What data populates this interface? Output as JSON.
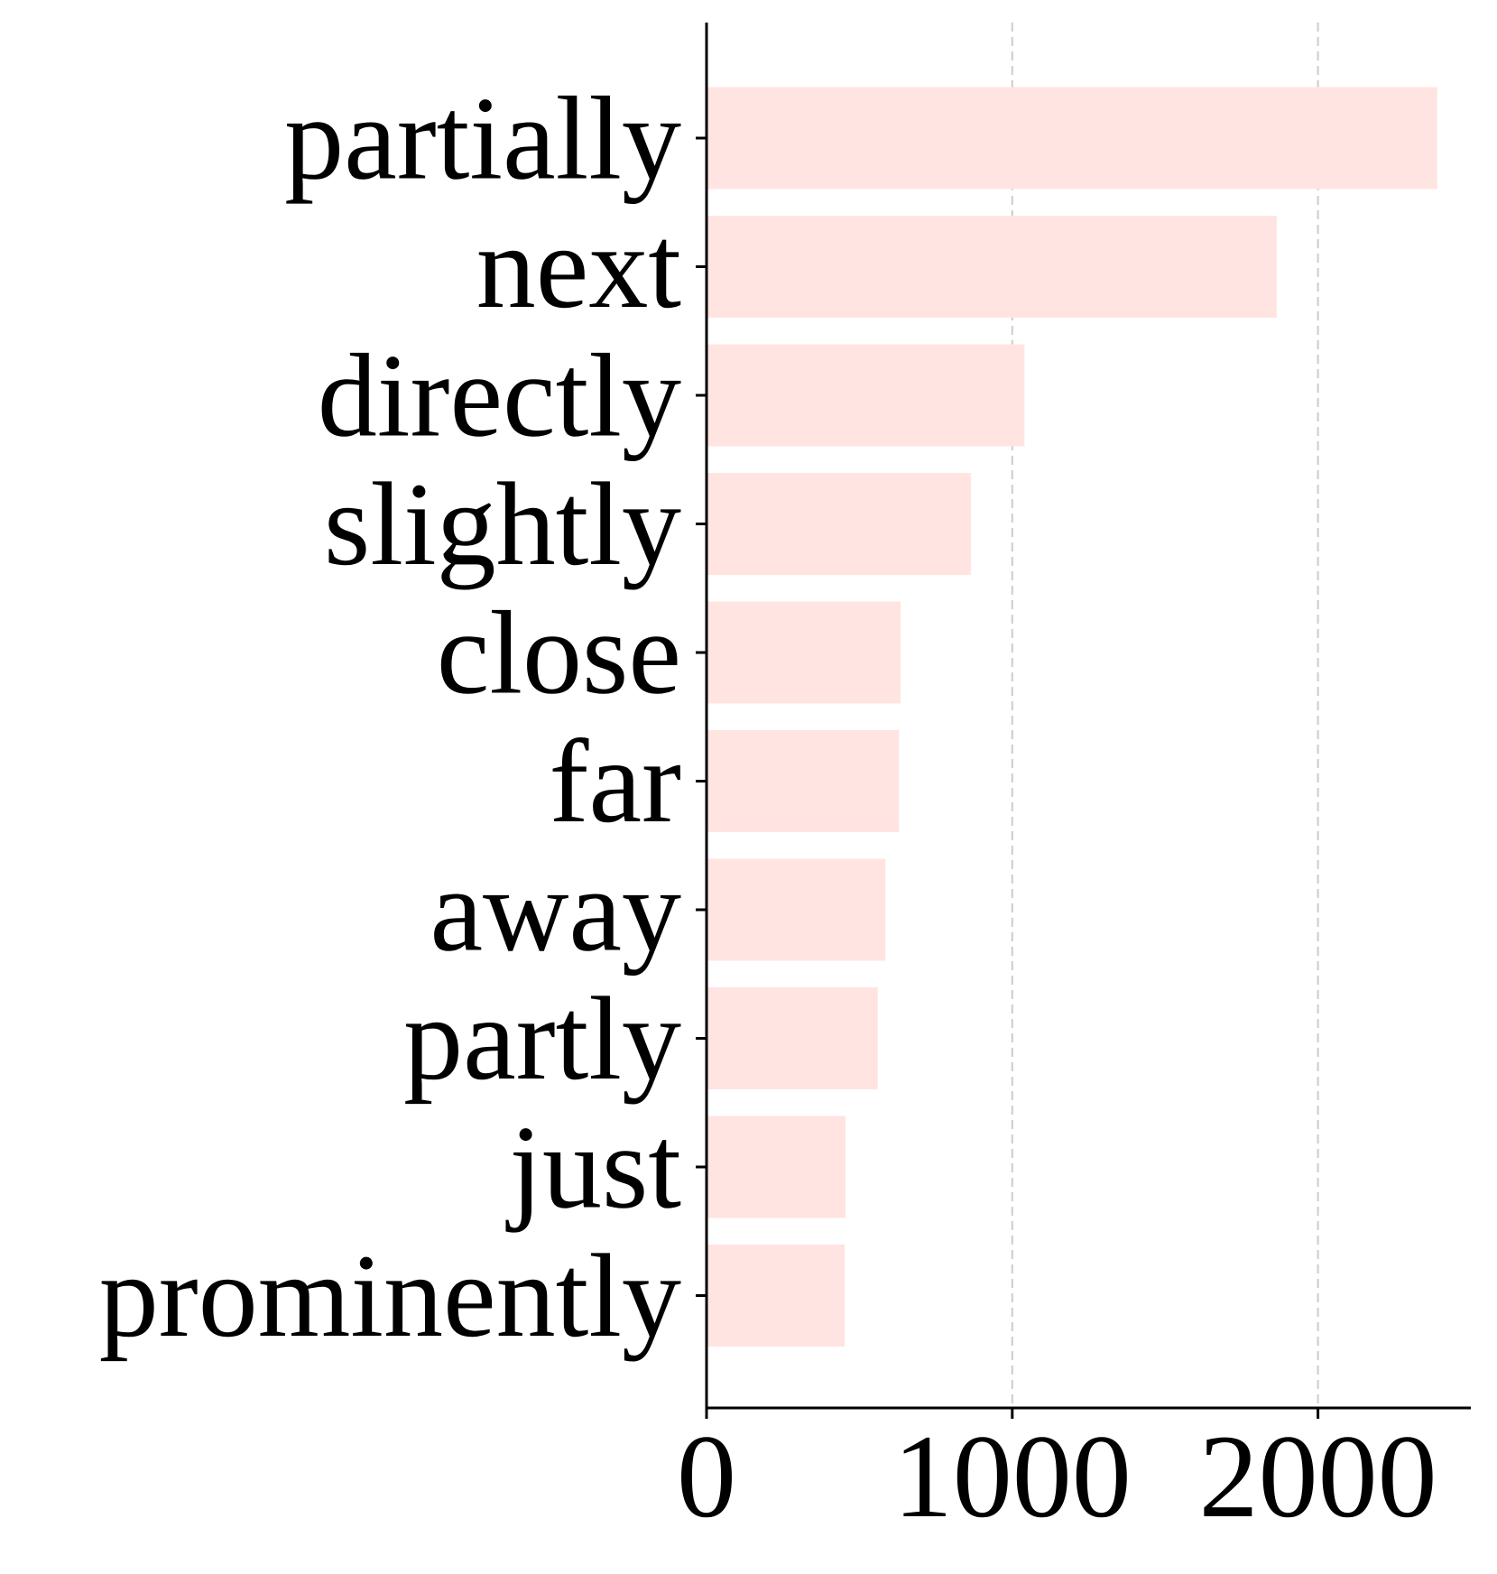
{
  "chart_data": {
    "type": "bar",
    "orientation": "horizontal",
    "categories": [
      "partially",
      "next",
      "directly",
      "slightly",
      "close",
      "far",
      "away",
      "partly",
      "just",
      "prominently"
    ],
    "values": [
      2390,
      1865,
      1040,
      865,
      635,
      630,
      585,
      560,
      455,
      452
    ],
    "xlim": [
      0,
      2500
    ],
    "xticks": [
      0,
      1000,
      2000
    ],
    "xtick_labels": [
      "0",
      "1000",
      "2000"
    ],
    "title": "",
    "xlabel": "",
    "ylabel": "",
    "grid": "x-dashed",
    "legend": "none",
    "bar_color": "#ffe4e1",
    "grid_color": "#cccccc",
    "axis_color": "#000000"
  }
}
